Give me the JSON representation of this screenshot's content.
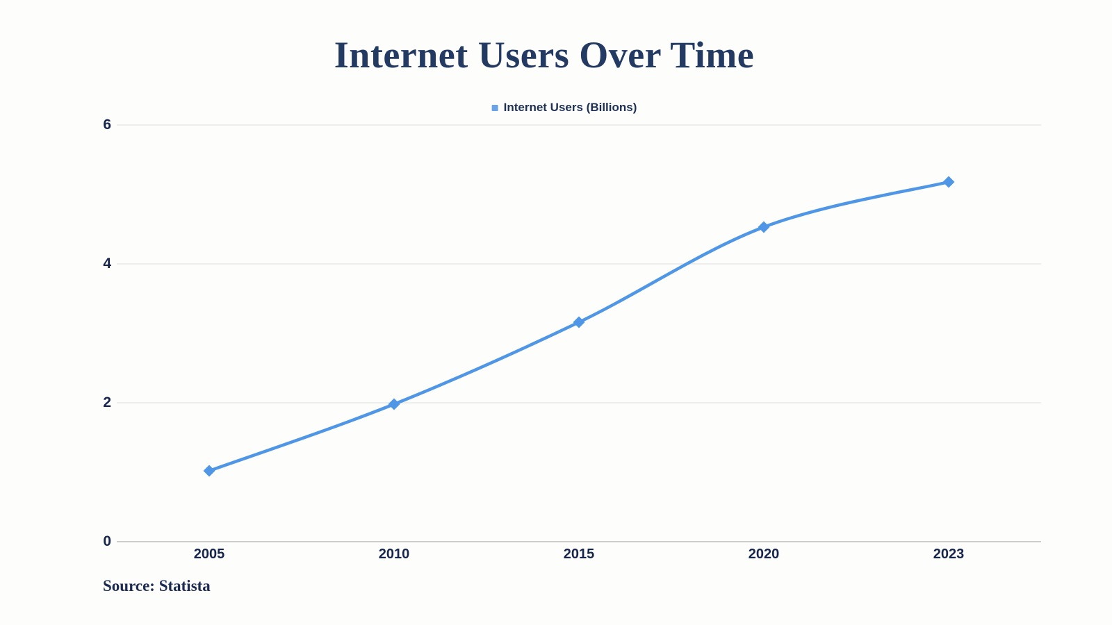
{
  "title": "Internet Users Over Time",
  "legend": {
    "label": "Internet Users (Billions)",
    "marker_color": "#6aa2e8"
  },
  "source": "Source: Statista",
  "colors": {
    "line": "#4f97e6",
    "marker": "#4f97e6",
    "title_text": "#233a63",
    "axis_label_text": "#16254c",
    "gridline": "#e8e8e8",
    "baseline": "#bdbdbd",
    "background": "#fdfdfb"
  },
  "chart_data": {
    "type": "line",
    "title": "Internet Users Over Time",
    "categories": [
      "2005",
      "2010",
      "2015",
      "2020",
      "2023"
    ],
    "series": [
      {
        "name": "Internet Users (Billions)",
        "values": [
          1.02,
          1.98,
          3.16,
          4.53,
          5.18
        ]
      }
    ],
    "xlabel": "",
    "ylabel": "",
    "ylim": [
      0,
      6
    ],
    "yticks": [
      0,
      2,
      4,
      6
    ],
    "grid": true,
    "legend_position": "top-center",
    "marker_shape": "diamond",
    "line_style": "smooth",
    "source_note": "Source: Statista"
  }
}
